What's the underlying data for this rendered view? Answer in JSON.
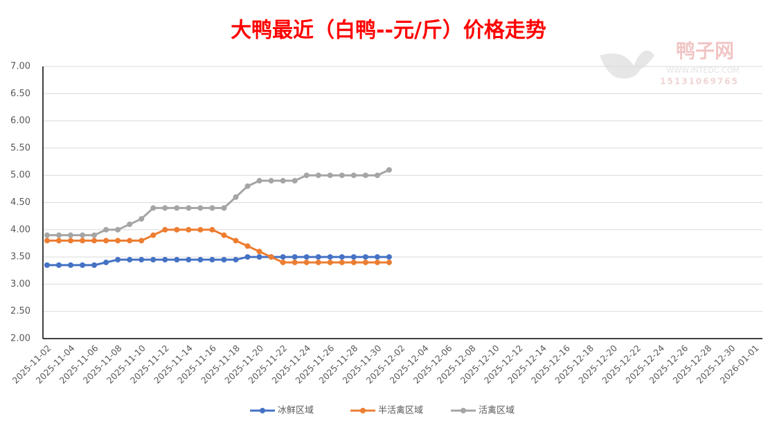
{
  "chart_data": {
    "type": "line",
    "title": "大鸭最近（白鸭--元/斤）价格走势",
    "watermark": {
      "brand": "鸭子网",
      "site": "WWW.INTEDC.COM",
      "phone": "15131069765"
    },
    "categories": [
      "2025-11-02",
      null,
      "2025-11-04",
      null,
      "2025-11-06",
      null,
      "2025-11-08",
      null,
      "2025-11-10",
      null,
      "2025-11-12",
      null,
      "2025-11-14",
      null,
      "2025-11-16",
      null,
      "2025-11-18",
      null,
      "2025-11-20",
      null,
      "2025-11-22",
      null,
      "2025-11-24",
      null,
      "2025-11-26",
      null,
      "2025-11-28",
      null,
      "2025-11-30",
      null,
      "2025-12-02",
      null,
      "2025-12-04",
      null,
      "2025-12-06",
      null,
      "2025-12-08",
      null,
      "2025-12-10",
      null,
      "2025-12-12",
      null,
      "2025-12-14",
      null,
      "2025-12-16",
      null,
      "2025-12-18",
      null,
      "2025-12-20",
      null,
      "2025-12-22",
      null,
      "2025-12-24",
      null,
      "2025-12-26",
      null,
      "2025-12-28",
      null,
      "2025-12-30",
      null,
      "2026-01-01"
    ],
    "series": [
      {
        "name": "冰鲜区域",
        "color": "#4472c4",
        "values": [
          3.35,
          3.35,
          3.35,
          3.35,
          3.35,
          3.4,
          3.45,
          3.45,
          3.45,
          3.45,
          3.45,
          3.45,
          3.45,
          3.45,
          3.45,
          3.45,
          3.45,
          3.5,
          3.5,
          3.5,
          3.5,
          3.5,
          3.5,
          3.5,
          3.5,
          3.5,
          3.5,
          3.5,
          3.5,
          3.5,
          null,
          null,
          null,
          null,
          null,
          null,
          null,
          null,
          null,
          null,
          null,
          null,
          null,
          null,
          null,
          null,
          null,
          null,
          null,
          null,
          null,
          null,
          null,
          null,
          null,
          null,
          null,
          null,
          null,
          null,
          null
        ]
      },
      {
        "name": "半活禽区域",
        "color": "#ed7d31",
        "values": [
          3.8,
          3.8,
          3.8,
          3.8,
          3.8,
          3.8,
          3.8,
          3.8,
          3.8,
          3.9,
          4.0,
          4.0,
          4.0,
          4.0,
          4.0,
          3.9,
          3.8,
          3.7,
          3.6,
          3.5,
          3.4,
          3.4,
          3.4,
          3.4,
          3.4,
          3.4,
          3.4,
          3.4,
          3.4,
          3.4,
          null,
          null,
          null,
          null,
          null,
          null,
          null,
          null,
          null,
          null,
          null,
          null,
          null,
          null,
          null,
          null,
          null,
          null,
          null,
          null,
          null,
          null,
          null,
          null,
          null,
          null,
          null,
          null,
          null,
          null,
          null
        ]
      },
      {
        "name": "活禽区域",
        "color": "#a5a5a5",
        "values": [
          3.9,
          3.9,
          3.9,
          3.9,
          3.9,
          4.0,
          4.0,
          4.1,
          4.2,
          4.4,
          4.4,
          4.4,
          4.4,
          4.4,
          4.4,
          4.4,
          4.6,
          4.8,
          4.9,
          4.9,
          4.9,
          4.9,
          5.0,
          5.0,
          5.0,
          5.0,
          5.0,
          5.0,
          5.0,
          5.1,
          null,
          null,
          null,
          null,
          null,
          null,
          null,
          null,
          null,
          null,
          null,
          null,
          null,
          null,
          null,
          null,
          null,
          null,
          null,
          null,
          null,
          null,
          null,
          null,
          null,
          null,
          null,
          null,
          null,
          null,
          null
        ]
      }
    ],
    "ylim": [
      2,
      7
    ],
    "yticks": [
      {
        "value": 2,
        "label": "2.00"
      },
      {
        "value": 2.5,
        "label": "2.50"
      },
      {
        "value": 3,
        "label": "3.00"
      },
      {
        "value": 3.5,
        "label": "3.50"
      },
      {
        "value": 4,
        "label": "4.00"
      },
      {
        "value": 4.5,
        "label": "4.50"
      },
      {
        "value": 5,
        "label": "5.00"
      },
      {
        "value": 5.5,
        "label": "5.50"
      },
      {
        "value": 6,
        "label": "6.00"
      },
      {
        "value": 6.5,
        "label": "6.50"
      },
      {
        "value": 7,
        "label": "7.00"
      }
    ],
    "grid": true,
    "legend": "bottom"
  }
}
